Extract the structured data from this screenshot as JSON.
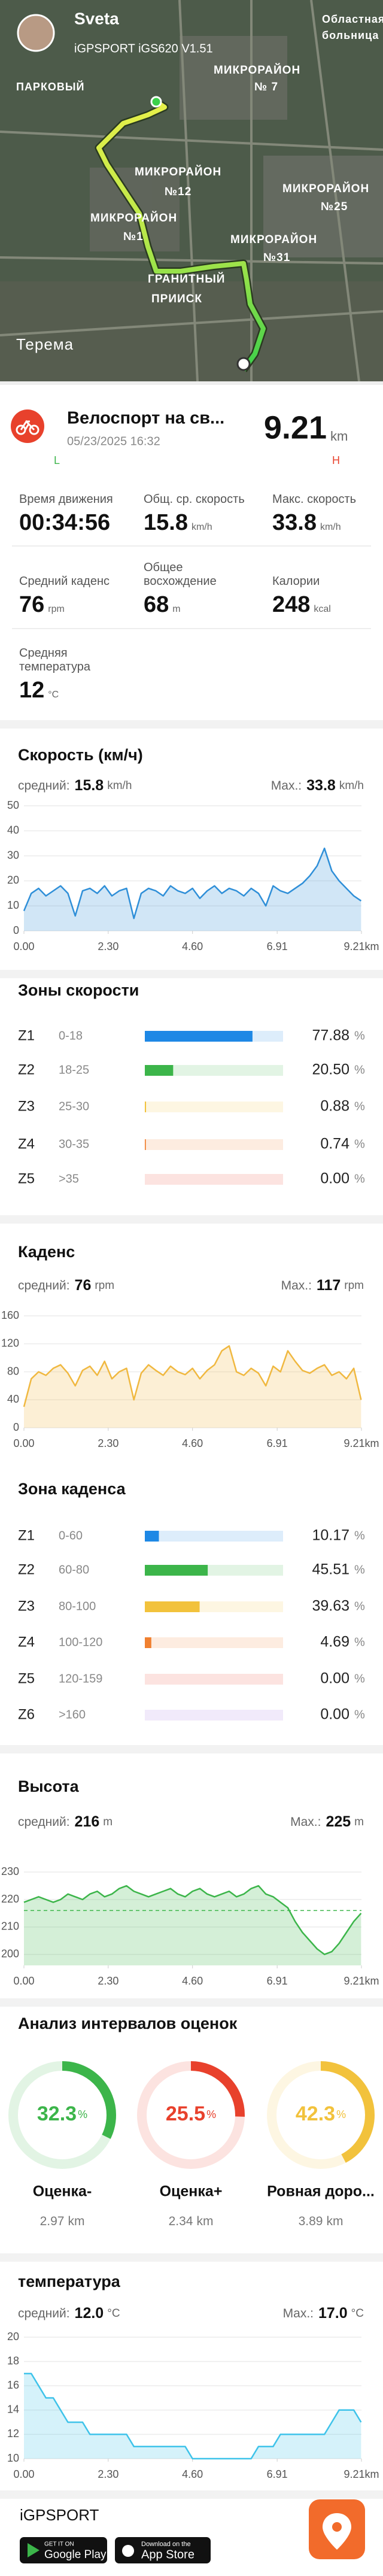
{
  "map": {
    "user": "Sveta",
    "device": "iGPSPORT iGS620 V1.51",
    "labels": [
      "Областная",
      "больница",
      "ПАРКОВЫЙ",
      "МИКРОРАЙОН",
      "№ 7",
      "МИКРОРАЙОН",
      "№12",
      "МИКРОРАЙОН",
      "№25",
      "МИКРОРАЙОН",
      "№1",
      "МИКРОРАЙОН",
      "№31",
      "ГРАНИТНЫЙ",
      "ПРИИСК",
      "Терема"
    ]
  },
  "activity": {
    "title": "Велоспорт на св...",
    "date": "05/23/2025 16:32",
    "distance": 9.21,
    "unit": "km",
    "low": "L",
    "high": "H"
  },
  "stats": [
    {
      "label": "Время движения",
      "value": "00:34:56"
    },
    {
      "label": "Общ. ср. скорость",
      "value": 15.8,
      "unit": "km/h"
    },
    {
      "label": "Макс. скорость",
      "value": 33.8,
      "unit": "km/h"
    },
    {
      "label": "Средний каденс",
      "value": 76,
      "unit": "rpm"
    },
    {
      "label": "Общее восхождение",
      "value": 68,
      "unit": "m"
    },
    {
      "label": "Калории",
      "value": 248,
      "unit": "kcal"
    },
    {
      "label": "Средняя температура",
      "value": 12,
      "unit": "°C"
    }
  ],
  "chart_data": [
    {
      "type": "line",
      "title": "Скорость (км/ч)",
      "avg_label": "средний:",
      "avg": 15.8,
      "max_label": "Max.:",
      "max": 33.8,
      "unit": "km/h",
      "color": "#2f8fd8",
      "grid": true,
      "x": [
        0,
        0.2,
        0.4,
        0.6,
        0.8,
        1,
        1.2,
        1.4,
        1.6,
        1.8,
        2,
        2.2,
        2.4,
        2.6,
        2.8,
        3,
        3.2,
        3.4,
        3.6,
        3.8,
        4,
        4.2,
        4.4,
        4.6,
        4.8,
        5,
        5.2,
        5.4,
        5.6,
        5.8,
        6,
        6.2,
        6.4,
        6.6,
        6.8,
        7,
        7.2,
        7.4,
        7.6,
        7.8,
        8,
        8.2,
        8.4,
        8.6,
        8.8,
        9,
        9.2
      ],
      "values": [
        8,
        15,
        17,
        14,
        16,
        18,
        15,
        6,
        16,
        17,
        15,
        18,
        14,
        16,
        17,
        5,
        15,
        17,
        16,
        14,
        18,
        16,
        15,
        17,
        13,
        16,
        18,
        15,
        17,
        16,
        14,
        17,
        15,
        10,
        18,
        16,
        15,
        17,
        19,
        22,
        26,
        33,
        24,
        20,
        17,
        14,
        12
      ],
      "xlim": [
        0,
        9.21
      ],
      "xticks": [
        {
          "value": 0,
          "label": "0.00"
        },
        {
          "value": 2.3,
          "label": "2.30"
        },
        {
          "value": 4.6,
          "label": "4.60"
        },
        6.91,
        {
          "value": 9.21,
          "label": "9.21km"
        }
      ],
      "ylim": [
        0,
        50
      ],
      "yticks": [
        0,
        10,
        20,
        30,
        40,
        50
      ]
    },
    {
      "type": "zones",
      "title": "Зоны скорости",
      "unit": "%",
      "categories": [
        "Z1",
        "Z2",
        "Z3",
        "Z4",
        "Z5"
      ],
      "ranges": [
        "0-18",
        "18-25",
        "25-30",
        "30-35",
        ">35"
      ],
      "values": [
        77.88,
        20.5,
        0.88,
        0.74,
        0
      ],
      "value_labels": [
        "77.88",
        "20.50",
        "0.88",
        "0.74",
        "0.00"
      ],
      "colors": [
        "#1e88e5",
        "#3cb54a",
        "#f2c23c",
        "#f08030",
        "#e8412c"
      ],
      "xlim": [
        0,
        100
      ]
    },
    {
      "type": "line",
      "title": "Каденс",
      "avg_label": "средний:",
      "avg": 76,
      "max_label": "Max.:",
      "max": 117,
      "unit": "rpm",
      "color": "#f0b840",
      "grid": true,
      "x": [
        0,
        0.2,
        0.4,
        0.6,
        0.8,
        1,
        1.2,
        1.4,
        1.6,
        1.8,
        2,
        2.2,
        2.4,
        2.6,
        2.8,
        3,
        3.2,
        3.4,
        3.6,
        3.8,
        4,
        4.2,
        4.4,
        4.6,
        4.8,
        5,
        5.2,
        5.4,
        5.6,
        5.8,
        6,
        6.2,
        6.4,
        6.6,
        6.8,
        7,
        7.2,
        7.4,
        7.6,
        7.8,
        8,
        8.2,
        8.4,
        8.6,
        8.8,
        9,
        9.2
      ],
      "values": [
        30,
        70,
        80,
        75,
        85,
        90,
        78,
        60,
        82,
        88,
        75,
        95,
        70,
        80,
        85,
        40,
        78,
        90,
        82,
        75,
        88,
        80,
        76,
        85,
        70,
        82,
        90,
        110,
        117,
        80,
        75,
        85,
        78,
        60,
        88,
        80,
        110,
        95,
        82,
        78,
        85,
        90,
        75,
        80,
        70,
        85,
        40
      ],
      "xlim": [
        0,
        9.21
      ],
      "xticks": [
        {
          "value": 0,
          "label": "0.00"
        },
        {
          "value": 2.3,
          "label": "2.30"
        },
        {
          "value": 4.6,
          "label": "4.60"
        },
        6.91,
        {
          "value": 9.21,
          "label": "9.21km"
        }
      ],
      "ylim": [
        0,
        160
      ],
      "yticks": [
        0,
        40,
        80,
        120,
        160
      ]
    },
    {
      "type": "zones",
      "title": "Зона каденса",
      "unit": "%",
      "categories": [
        "Z1",
        "Z2",
        "Z3",
        "Z4",
        "Z5",
        "Z6"
      ],
      "ranges": [
        "0-60",
        "60-80",
        "80-100",
        "100-120",
        "120-159",
        ">160"
      ],
      "values": [
        10.17,
        45.51,
        39.63,
        4.69,
        0,
        0
      ],
      "value_labels": [
        "10.17",
        "45.51",
        "39.63",
        "4.69",
        "0.00",
        "0.00"
      ],
      "colors": [
        "#1e88e5",
        "#3cb54a",
        "#f2c23c",
        "#f08030",
        "#e8412c",
        "#a070e0"
      ],
      "xlim": [
        0,
        100
      ]
    },
    {
      "type": "line",
      "title": "Высота",
      "avg_label": "средний:",
      "avg": 216,
      "max_label": "Max.:",
      "max": 225,
      "unit": "m",
      "color": "#3cb54a",
      "grid": true,
      "avg_line": true,
      "x": [
        0,
        0.2,
        0.4,
        0.6,
        0.8,
        1,
        1.2,
        1.4,
        1.6,
        1.8,
        2,
        2.2,
        2.4,
        2.6,
        2.8,
        3,
        3.2,
        3.4,
        3.6,
        3.8,
        4,
        4.2,
        4.4,
        4.6,
        4.8,
        5,
        5.2,
        5.4,
        5.6,
        5.8,
        6,
        6.2,
        6.4,
        6.6,
        6.8,
        7,
        7.2,
        7.4,
        7.6,
        7.8,
        8,
        8.2,
        8.4,
        8.6,
        8.8,
        9,
        9.2
      ],
      "values": [
        219,
        220,
        221,
        220,
        219,
        220,
        222,
        221,
        220,
        222,
        223,
        221,
        222,
        224,
        225,
        223,
        222,
        221,
        222,
        223,
        224,
        222,
        221,
        223,
        224,
        222,
        221,
        222,
        223,
        221,
        222,
        224,
        225,
        222,
        221,
        219,
        217,
        212,
        208,
        205,
        202,
        200,
        201,
        204,
        208,
        212,
        215
      ],
      "xlim": [
        0,
        9.21
      ],
      "xticks": [
        {
          "value": 0,
          "label": "0.00"
        },
        {
          "value": 2.3,
          "label": "2.30"
        },
        {
          "value": 4.6,
          "label": "4.60"
        },
        6.91,
        {
          "value": 9.21,
          "label": "9.21km"
        }
      ],
      "ylim": [
        196,
        232
      ],
      "yticks": [
        200,
        210,
        220,
        230
      ]
    },
    {
      "type": "donut",
      "title": "Анализ интервалов оценок",
      "unit": "%",
      "categories": [
        "Оценка-",
        "Оценка+",
        "Ровная доро..."
      ],
      "values": [
        32.3,
        25.5,
        42.3
      ],
      "distances": [
        2.97,
        2.34,
        3.89
      ],
      "distance_unit": "km",
      "colors": [
        "#3cb54a",
        "#e8412c",
        "#f2c23c"
      ]
    },
    {
      "type": "line",
      "title": "температура",
      "avg_label": "средний:",
      "avg": {
        "value": 12,
        "label": "12.0"
      },
      "max_label": "Max.:",
      "max": {
        "value": 17,
        "label": "17.0"
      },
      "unit": "°C",
      "color": "#3ec3ea",
      "grid": true,
      "x": [
        0,
        0.2,
        0.4,
        0.6,
        0.8,
        1,
        1.2,
        1.4,
        1.6,
        1.8,
        2,
        2.2,
        2.4,
        2.6,
        2.8,
        3,
        3.2,
        3.4,
        3.6,
        3.8,
        4,
        4.2,
        4.4,
        4.6,
        4.8,
        5,
        5.2,
        5.4,
        5.6,
        5.8,
        6,
        6.2,
        6.4,
        6.6,
        6.8,
        7,
        7.2,
        7.4,
        7.6,
        7.8,
        8,
        8.2,
        8.4,
        8.6,
        8.8,
        9,
        9.2
      ],
      "values": [
        17,
        17,
        16,
        15,
        15,
        14,
        13,
        13,
        13,
        12,
        12,
        12,
        12,
        12,
        12,
        11,
        11,
        11,
        11,
        11,
        11,
        11,
        11,
        10,
        10,
        10,
        10,
        10,
        10,
        10,
        10,
        10,
        11,
        11,
        11,
        12,
        12,
        12,
        12,
        12,
        12,
        12,
        13,
        14,
        14,
        14,
        13
      ],
      "xlim": [
        0,
        9.21
      ],
      "xticks": [
        {
          "value": 0,
          "label": "0.00"
        },
        {
          "value": 2.3,
          "label": "2.30"
        },
        {
          "value": 4.6,
          "label": "4.60"
        },
        6.91,
        {
          "value": 9.21,
          "label": "9.21km"
        }
      ],
      "ylim": [
        10,
        20
      ],
      "yticks": [
        10,
        12,
        14,
        16,
        18,
        20
      ]
    }
  ],
  "footer": {
    "brand": "iGPSPORT",
    "badges": [
      {
        "small": "GET IT ON",
        "big": "Google Play"
      },
      {
        "small": "Download on the",
        "big": "App Store"
      }
    ]
  }
}
